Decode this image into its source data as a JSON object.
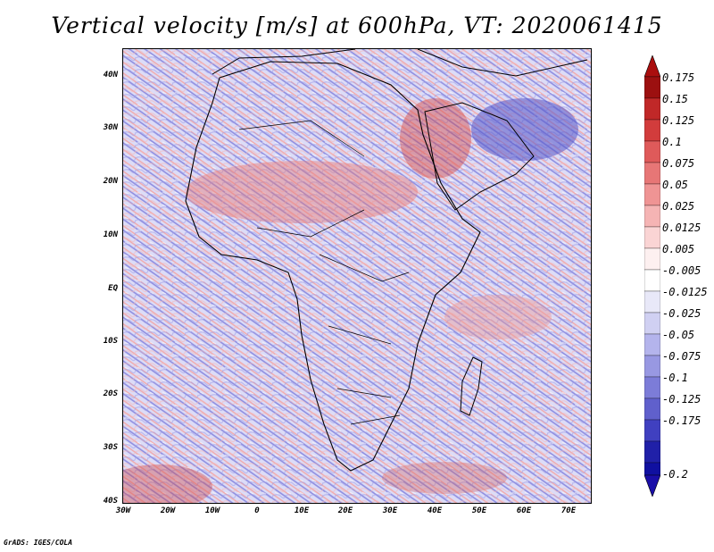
{
  "title": "Vertical velocity [m/s] at 600hPa, VT: 2020061415",
  "credit": "GrADS: IGES/COLA",
  "map": {
    "lat_range": [
      -40,
      45
    ],
    "lon_range": [
      -30,
      75
    ],
    "lat_labels": [
      "40N",
      "30N",
      "20N",
      "10N",
      "EQ",
      "10S",
      "20S",
      "30S",
      "40S"
    ],
    "lon_labels": [
      "30W",
      "20W",
      "10W",
      "0",
      "10E",
      "20E",
      "30E",
      "40E",
      "50E",
      "60E",
      "70E"
    ],
    "ocean_color": "#c9c9f2",
    "land_color": "#e2dcec"
  },
  "colorbar": {
    "labels": [
      "0.175",
      "0.15",
      "0.125",
      "0.1",
      "0.075",
      "0.05",
      "0.025",
      "0.0125",
      "0.005",
      "-0.005",
      "-0.0125",
      "-0.025",
      "-0.05",
      "-0.075",
      "-0.1",
      "-0.125",
      "-0.175",
      "-0.2"
    ],
    "colors": [
      "#9c1010",
      "#c02828",
      "#d23c3c",
      "#df5a5a",
      "#e77676",
      "#ef9494",
      "#f5b4b4",
      "#fad4d4",
      "#fdf0f0",
      "#ffffff",
      "#e8e8f8",
      "#d0d0f2",
      "#b4b4ec",
      "#9898e2",
      "#7c7cd8",
      "#6060cc",
      "#4040c0",
      "#2020a8",
      "#1010a0"
    ],
    "top_arrow_color": "#aa0e0e",
    "bottom_arrow_color": "#1a0ea8"
  }
}
